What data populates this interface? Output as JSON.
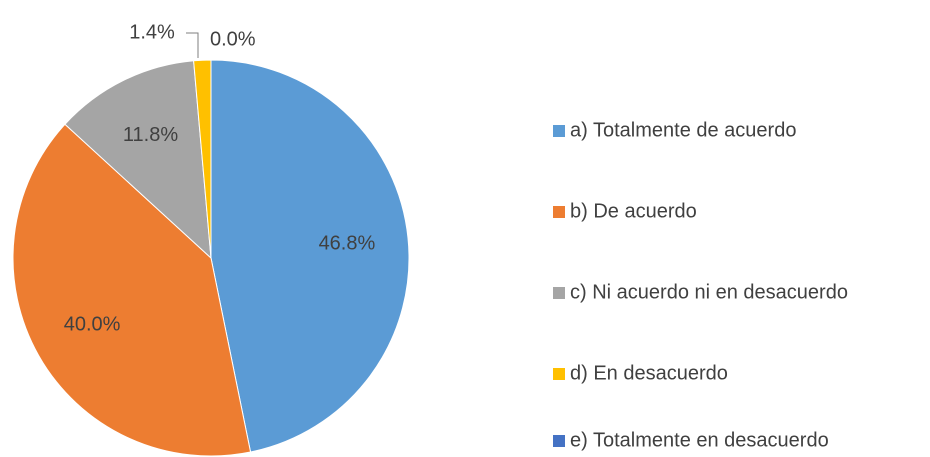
{
  "chart_data": {
    "type": "pie",
    "categories": [
      "a) Totalmente de acuerdo",
      "b) De acuerdo",
      "c) Ni acuerdo ni en desacuerdo",
      "d) En desacuerdo",
      "e) Totalmente en desacuerdo"
    ],
    "values": [
      46.8,
      40.0,
      11.8,
      1.4,
      0.0
    ],
    "value_labels": [
      "46.8%",
      "40.0%",
      "11.8%",
      "1.4%",
      "0.0%"
    ],
    "colors": [
      "#5b9bd5",
      "#ed7d31",
      "#a5a5a5",
      "#ffc000",
      "#4472c4"
    ],
    "legend": "right"
  }
}
